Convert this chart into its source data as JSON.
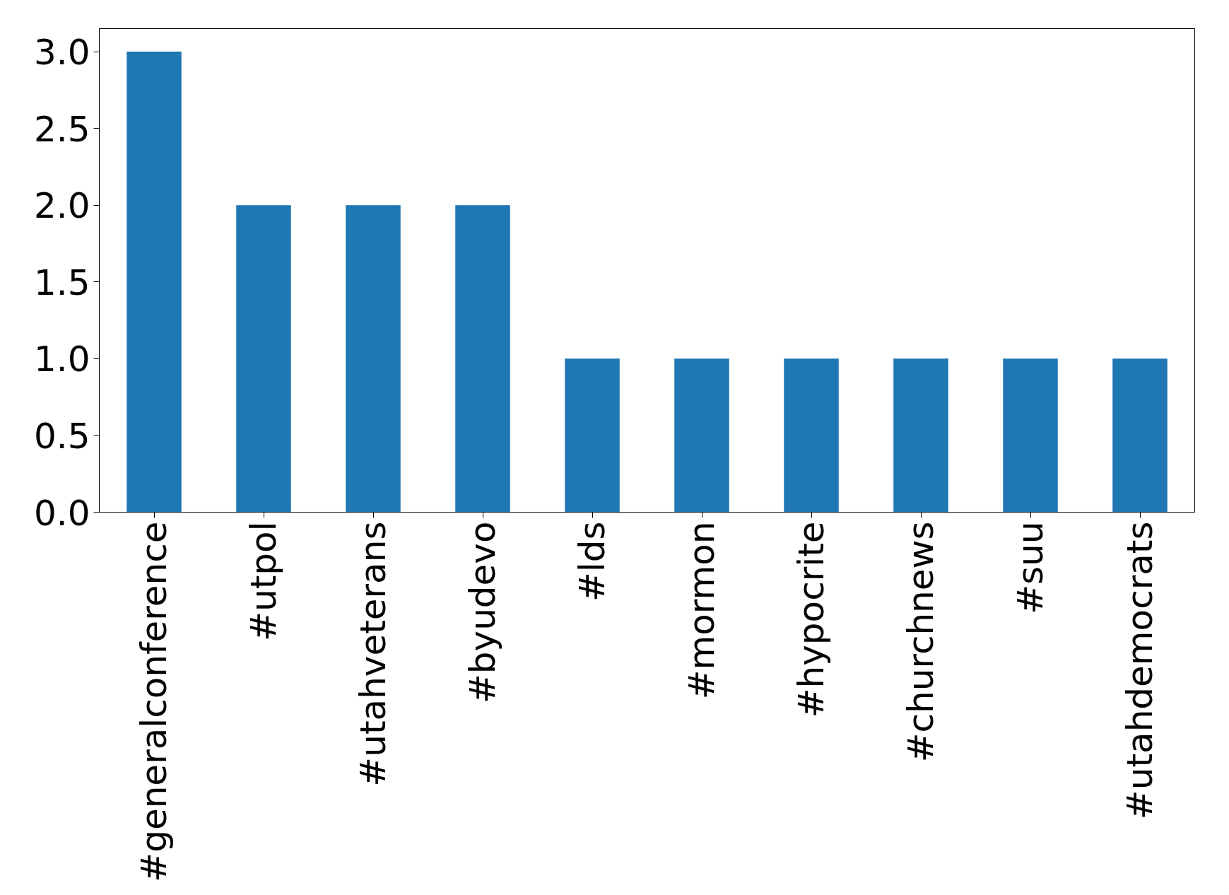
{
  "chart_data": {
    "type": "bar",
    "categories": [
      "#generalconference",
      "#utpol",
      "#utahveterans",
      "#byudevo",
      "#lds",
      "#mormon",
      "#hypocrite",
      "#churchnews",
      "#suu",
      "#utahdemocrats"
    ],
    "values": [
      3,
      2,
      2,
      2,
      1,
      1,
      1,
      1,
      1,
      1
    ],
    "color": "#1f77b4",
    "ylim": [
      0,
      3.15
    ],
    "yticks": [
      {
        "value": 0,
        "label": "0.0"
      },
      {
        "value": 0.5,
        "label": "0.5"
      },
      {
        "value": 1,
        "label": "1.0"
      },
      {
        "value": 1.5,
        "label": "1.5"
      },
      {
        "value": 2,
        "label": "2.0"
      },
      {
        "value": 2.5,
        "label": "2.5"
      },
      {
        "value": 3,
        "label": "3.0"
      }
    ],
    "grid": false
  }
}
